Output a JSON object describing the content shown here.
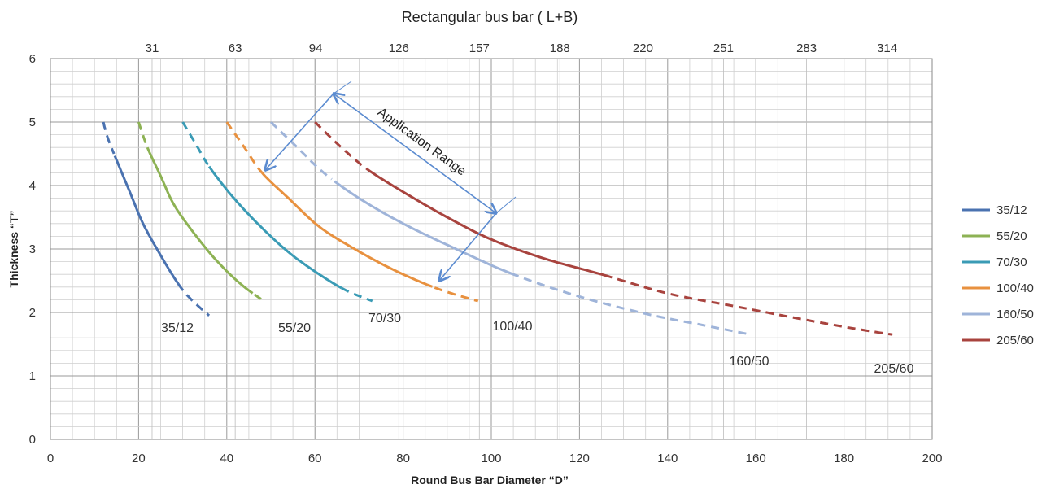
{
  "chart_data": {
    "type": "line",
    "top_axis_title": "Rectangular bus bar ( L+B)",
    "xlabel": "Round Bus Bar Diameter  “D”",
    "ylabel": "Thickness “T”",
    "xlim": [
      0,
      200
    ],
    "ylim": [
      0,
      6
    ],
    "x_ticks": [
      "0",
      "20",
      "40",
      "60",
      "80",
      "100",
      "120",
      "140",
      "160",
      "180",
      "200"
    ],
    "y_ticks": [
      "0",
      "1",
      "2",
      "3",
      "4",
      "5",
      "6"
    ],
    "top_ticks": [
      "31",
      "63",
      "94",
      "126",
      "157",
      "188",
      "220",
      "251",
      "283",
      "314"
    ],
    "grid": true,
    "legend_position": "right",
    "annotation": "Application Range",
    "series": [
      {
        "name": "35/12",
        "color": "#4a72b0",
        "label": "35/12",
        "x": [
          12,
          13,
          15,
          18,
          21,
          25,
          29,
          32,
          36
        ],
        "y": [
          5.0,
          4.75,
          4.4,
          3.9,
          3.4,
          2.9,
          2.45,
          2.2,
          1.95
        ],
        "solid_range": [
          14.5,
          29
        ]
      },
      {
        "name": "55/20",
        "color": "#8db254",
        "label": "55/20",
        "x": [
          20,
          22,
          25,
          28,
          32,
          36,
          40,
          44,
          48
        ],
        "y": [
          5.0,
          4.6,
          4.15,
          3.7,
          3.3,
          2.95,
          2.65,
          2.4,
          2.2
        ],
        "solid_range": [
          22,
          46
        ]
      },
      {
        "name": "70/30",
        "color": "#3a9bb5",
        "label": "70/30",
        "x": [
          30,
          33,
          36,
          41,
          47,
          54,
          61,
          67,
          73
        ],
        "y": [
          5.0,
          4.65,
          4.3,
          3.85,
          3.4,
          2.95,
          2.6,
          2.35,
          2.18
        ],
        "solid_range": [
          36,
          66
        ]
      },
      {
        "name": "100/40",
        "color": "#e8913f",
        "label": "100/40",
        "x": [
          40,
          44,
          48,
          54,
          61,
          69,
          77,
          85,
          91,
          97
        ],
        "y": [
          5.0,
          4.6,
          4.2,
          3.8,
          3.35,
          3.0,
          2.7,
          2.45,
          2.3,
          2.18
        ],
        "solid_range": [
          48,
          87
        ]
      },
      {
        "name": "160/50",
        "color": "#9fb4d9",
        "label": "160/50",
        "x": [
          50,
          56,
          62,
          70,
          80,
          92,
          105,
          120,
          135,
          148,
          159
        ],
        "y": [
          5.0,
          4.6,
          4.2,
          3.8,
          3.4,
          3.0,
          2.6,
          2.25,
          1.98,
          1.8,
          1.65
        ],
        "solid_range": [
          64,
          107
        ]
      },
      {
        "name": "205/60",
        "color": "#a8433e",
        "label": "205/60",
        "x": [
          60,
          66,
          72,
          80,
          90,
          100,
          112,
          125,
          140,
          155,
          170,
          182,
          191
        ],
        "y": [
          5.0,
          4.6,
          4.25,
          3.9,
          3.5,
          3.15,
          2.85,
          2.6,
          2.3,
          2.1,
          1.9,
          1.75,
          1.65
        ],
        "solid_range": [
          72,
          128
        ]
      }
    ]
  }
}
